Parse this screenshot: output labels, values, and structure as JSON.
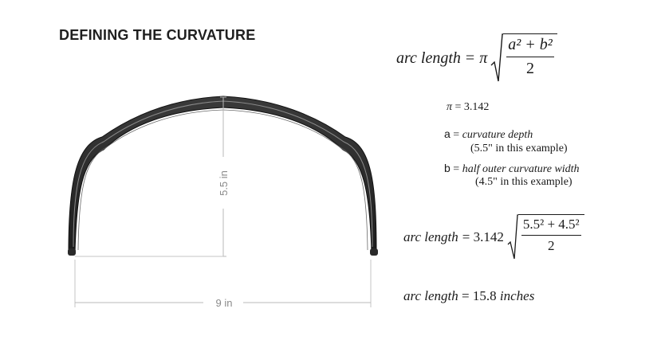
{
  "title": "DEFINING THE CURVATURE",
  "diagram": {
    "height_label": "5.5 in",
    "width_label": "9 in"
  },
  "formula_main": {
    "lhs": "arc length",
    "equals": "=",
    "pi": "π",
    "numerator": "a² + b²",
    "denominator": "2"
  },
  "definitions": {
    "pi_symbol": "π",
    "pi_equals": "= 3.142",
    "a_var": "a",
    "a_equals": "=",
    "a_desc": "curvature depth",
    "a_example": "(5.5\" in this example)",
    "b_var": "b",
    "b_equals": "=",
    "b_desc": "half outer curvature width",
    "b_example": "(4.5\" in this example)"
  },
  "formula_sub": {
    "lhs": "arc length",
    "rhs": "= 3.142",
    "numerator": "5.5² + 4.5²",
    "denominator": "2"
  },
  "formula_result": {
    "lhs": "arc length",
    "rhs": "= 15.8",
    "unit": "inches"
  }
}
